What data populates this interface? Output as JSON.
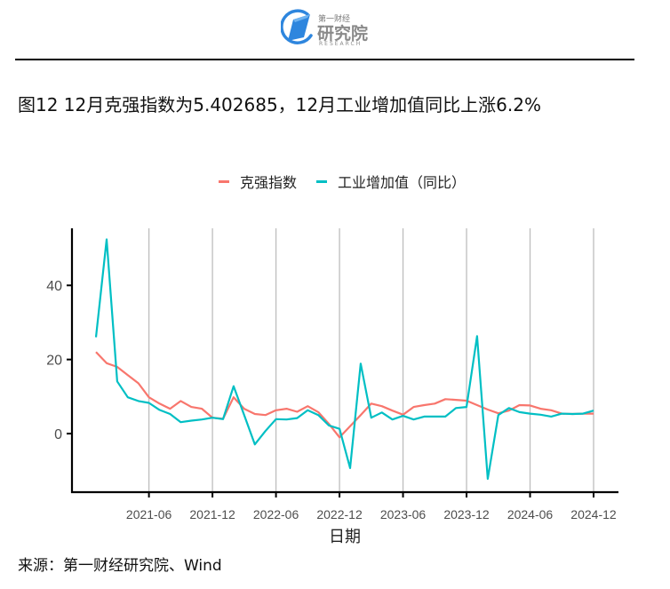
{
  "header": {
    "logo": {
      "icon": "diamond-in-circle-icon",
      "small_text": "第一财经",
      "big_text": "研究院",
      "english_text": "RESEARCH",
      "accent_color": "#2E86DE"
    }
  },
  "figure": {
    "title": "图12 12月克强指数为5.402685，12月工业增加值同比上涨6.2%",
    "source": "来源：第一财经研究院、Wind"
  },
  "chart_data": {
    "type": "line",
    "title": "图12 12月克强指数为5.402685，12月工业增加值同比上涨6.2%",
    "xlabel": "日期",
    "ylabel": "",
    "x": [
      "2021-01",
      "2021-02",
      "2021-03",
      "2021-04",
      "2021-05",
      "2021-06",
      "2021-07",
      "2021-08",
      "2021-09",
      "2021-10",
      "2021-11",
      "2021-12",
      "2022-01",
      "2022-02",
      "2022-03",
      "2022-04",
      "2022-05",
      "2022-06",
      "2022-07",
      "2022-08",
      "2022-09",
      "2022-10",
      "2022-11",
      "2022-12",
      "2023-01",
      "2023-02",
      "2023-03",
      "2023-04",
      "2023-05",
      "2023-06",
      "2023-07",
      "2023-08",
      "2023-09",
      "2023-10",
      "2023-11",
      "2023-12",
      "2024-01",
      "2024-02",
      "2024-03",
      "2024-04",
      "2024-05",
      "2024-06",
      "2024-07",
      "2024-08",
      "2024-09",
      "2024-10",
      "2024-11",
      "2024-12"
    ],
    "series": [
      {
        "name": "克强指数",
        "color": "#F8766D",
        "values": [
          22.0,
          19.0,
          18.0,
          15.8,
          13.6,
          9.8,
          8.1,
          6.7,
          8.8,
          7.2,
          6.7,
          4.3,
          4.0,
          9.8,
          6.7,
          5.3,
          5.0,
          6.3,
          6.7,
          5.9,
          7.4,
          5.8,
          2.6,
          -1.0,
          2.0,
          5.0,
          8.1,
          7.4,
          6.2,
          5.1,
          7.2,
          7.7,
          8.1,
          9.3,
          9.1,
          8.9,
          7.7,
          6.5,
          5.5,
          6.2,
          7.7,
          7.6,
          6.7,
          6.3,
          5.4,
          5.3,
          5.4,
          5.4
        ]
      },
      {
        "name": "工业增加值（同比）",
        "color": "#00BFC4",
        "values": [
          26.0,
          52.4,
          14.1,
          9.8,
          8.8,
          8.3,
          6.4,
          5.3,
          3.1,
          3.5,
          3.8,
          4.3,
          3.9,
          12.8,
          5.0,
          -2.9,
          0.7,
          3.9,
          3.8,
          4.2,
          6.3,
          5.0,
          2.2,
          1.3,
          -9.3,
          18.9,
          4.3,
          5.7,
          3.8,
          4.8,
          3.8,
          4.6,
          4.6,
          4.6,
          6.9,
          7.2,
          26.3,
          -12.2,
          5.0,
          6.9,
          5.8,
          5.4,
          5.1,
          4.6,
          5.4,
          5.3,
          5.4,
          6.2
        ]
      }
    ],
    "y_ticks": [
      0,
      20,
      40
    ],
    "y_tick_labels": [
      "0",
      "20",
      "40"
    ],
    "x_ticks": [
      "2021-06",
      "2021-12",
      "2022-06",
      "2022-12",
      "2023-06",
      "2023-12",
      "2024-06",
      "2024-12"
    ],
    "x_tick_labels": [
      "2021-06",
      "2021-12",
      "2022-06",
      "2022-12",
      "2023-06",
      "2023-12",
      "2024-06",
      "2024-12"
    ],
    "ylim": [
      -15.8,
      55.4
    ],
    "xlim_months_from_first": [
      -2.27,
      49.35
    ],
    "grid": {
      "vertical_major": true,
      "horizontal": false,
      "color": "#BEBEBE"
    },
    "legend": {
      "position": "top",
      "entries": [
        "克强指数",
        "工业增加值（同比）"
      ]
    },
    "annotations": []
  }
}
